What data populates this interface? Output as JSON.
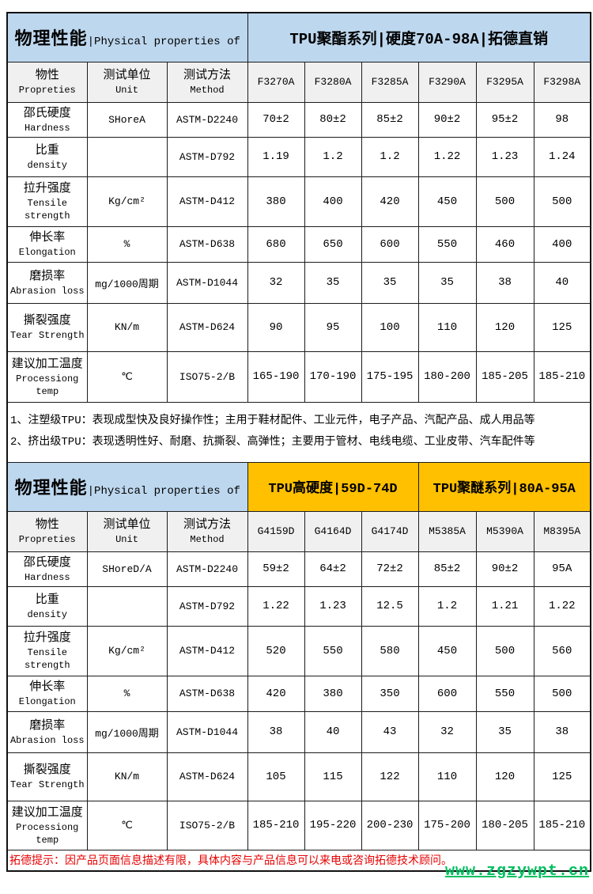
{
  "colors": {
    "header_blue": "#bdd7ee",
    "header_gold": "#ffc000",
    "note_red": "#e60000",
    "watermark_green": "#00c060"
  },
  "watermark": "www.zgzywpt.cn",
  "notes": [
    "1、注塑级TPU：表现成型快及良好操作性；主用于鞋材配件、工业元件，电子产品、汽配产品、成人用品等",
    "2、挤出级TPU：表现透明性好、耐磨、抗撕裂、高弹性；主要用于管材、电线电缆、工业皮带、汽车配件等"
  ],
  "footer_note": "拓德提示：因产品页面信息描述有限，具体内容与产品信息可以来电或咨询拓德技术顾问。",
  "table1": {
    "title_left_zh": "物理性能",
    "title_left_en": "|Physical properties of",
    "title_right": "TPU聚酯系列|硬度70A-98A|拓德直销",
    "col_headers": [
      {
        "zh": "物性",
        "en": "Propreties"
      },
      {
        "zh": "测试单位",
        "en": "Unit"
      },
      {
        "zh": "测试方法",
        "en": "Method"
      }
    ],
    "models": [
      "F3270A",
      "F3280A",
      "F3285A",
      "F3290A",
      "F3295A",
      "F3298A"
    ],
    "rows": [
      {
        "zh": "邵氏硬度",
        "en": "Hardness",
        "unit": "SHoreA",
        "method": "ASTM-D2240",
        "values": [
          "70±2",
          "80±2",
          "85±2",
          "90±2",
          "95±2",
          "98"
        ]
      },
      {
        "zh": "比重",
        "en": "density",
        "unit": "",
        "method": "ASTM-D792",
        "values": [
          "1.19",
          "1.2",
          "1.2",
          "1.22",
          "1.23",
          "1.24"
        ]
      },
      {
        "zh": "拉升强度",
        "en": "Tensile strength",
        "unit": "Kg/cm²",
        "method": "ASTM-D412",
        "values": [
          "380",
          "400",
          "420",
          "450",
          "500",
          "500"
        ]
      },
      {
        "zh": "伸长率",
        "en": "Elongation",
        "unit": "%",
        "method": "ASTM-D638",
        "values": [
          "680",
          "650",
          "600",
          "550",
          "460",
          "400"
        ]
      },
      {
        "zh": "磨损率",
        "en": "Abrasion loss",
        "unit": "mg/1000周期",
        "method": "ASTM-D1044",
        "values": [
          "32",
          "35",
          "35",
          "35",
          "38",
          "40"
        ]
      },
      {
        "zh": "撕裂强度",
        "en": "Tear Strength",
        "unit": "KN/m",
        "method": "ASTM-D624",
        "values": [
          "90",
          "95",
          "100",
          "110",
          "120",
          "125"
        ]
      },
      {
        "zh": "建议加工温度",
        "en": "Processiong temp",
        "unit": "℃",
        "method": "ISO75-2/B",
        "values": [
          "165-190",
          "170-190",
          "175-195",
          "180-200",
          "185-205",
          "185-210"
        ]
      }
    ]
  },
  "table2": {
    "title_left_zh": "物理性能",
    "title_left_en": "|Physical properties of",
    "title_mid": "TPU高硬度|59D-74D",
    "title_right": "TPU聚醚系列|80A-95A",
    "col_headers": [
      {
        "zh": "物性",
        "en": "Propreties"
      },
      {
        "zh": "测试单位",
        "en": "Unit"
      },
      {
        "zh": "测试方法",
        "en": "Method"
      }
    ],
    "models": [
      "G4159D",
      "G4164D",
      "G4174D",
      "M5385A",
      "M5390A",
      "M8395A"
    ],
    "rows": [
      {
        "zh": "邵氏硬度",
        "en": "Hardness",
        "unit": "SHoreD/A",
        "method": "ASTM-D2240",
        "values": [
          "59±2",
          "64±2",
          "72±2",
          "85±2",
          "90±2",
          "95A"
        ]
      },
      {
        "zh": "比重",
        "en": "density",
        "unit": "",
        "method": "ASTM-D792",
        "values": [
          "1.22",
          "1.23",
          "12.5",
          "1.2",
          "1.21",
          "1.22"
        ]
      },
      {
        "zh": "拉升强度",
        "en": "Tensile strength",
        "unit": "Kg/cm²",
        "method": "ASTM-D412",
        "values": [
          "520",
          "550",
          "580",
          "450",
          "500",
          "560"
        ]
      },
      {
        "zh": "伸长率",
        "en": "Elongation",
        "unit": "%",
        "method": "ASTM-D638",
        "values": [
          "420",
          "380",
          "350",
          "600",
          "550",
          "500"
        ]
      },
      {
        "zh": "磨损率",
        "en": "Abrasion loss",
        "unit": "mg/1000周期",
        "method": "ASTM-D1044",
        "values": [
          "38",
          "40",
          "43",
          "32",
          "35",
          "38"
        ]
      },
      {
        "zh": "撕裂强度",
        "en": "Tear Strength",
        "unit": "KN/m",
        "method": "ASTM-D624",
        "values": [
          "105",
          "115",
          "122",
          "110",
          "120",
          "125"
        ]
      },
      {
        "zh": "建议加工温度",
        "en": "Processiong temp",
        "unit": "℃",
        "method": "ISO75-2/B",
        "values": [
          "185-210",
          "195-220",
          "200-230",
          "175-200",
          "180-205",
          "185-210"
        ]
      }
    ]
  }
}
